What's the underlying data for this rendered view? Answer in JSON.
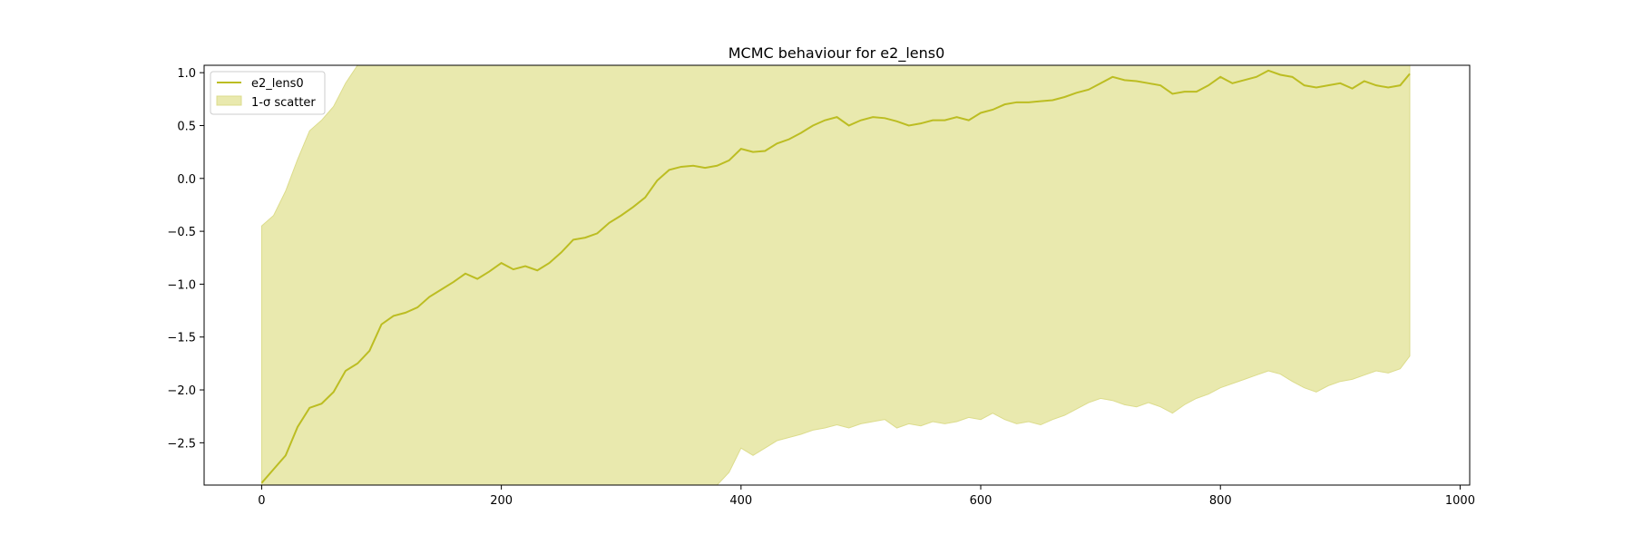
{
  "chart_data": {
    "type": "line",
    "title": "MCMC behaviour for e2_lens0",
    "xlabel": "",
    "ylabel": "",
    "xlim": [
      -48,
      1008
    ],
    "ylim": [
      -2.9,
      1.07
    ],
    "xticks": [
      0,
      200,
      400,
      600,
      800,
      1000
    ],
    "yticks": [
      1.0,
      0.5,
      0.0,
      -0.5,
      -1.0,
      -1.5,
      -2.0,
      -2.5
    ],
    "xtick_labels": [
      "0",
      "200",
      "400",
      "600",
      "800",
      "1000"
    ],
    "ytick_labels": [
      "1.0",
      "0.5",
      "0.0",
      "−0.5",
      "−1.0",
      "−1.5",
      "−2.0",
      "−2.5"
    ],
    "legend": {
      "position": "upper-left",
      "entries": [
        "e2_lens0",
        "1-σ scatter"
      ]
    },
    "grid": false,
    "colors": {
      "line": "#bcbd22",
      "band": "#e9e9ae",
      "band_edge": "#dcdc8c"
    },
    "series": [
      {
        "name": "e2_lens0",
        "x": [
          0,
          10,
          20,
          30,
          40,
          50,
          60,
          70,
          80,
          90,
          100,
          110,
          120,
          130,
          140,
          150,
          160,
          170,
          180,
          190,
          200,
          210,
          220,
          230,
          240,
          250,
          260,
          270,
          280,
          290,
          300,
          310,
          320,
          330,
          340,
          350,
          360,
          370,
          380,
          390,
          400,
          410,
          420,
          430,
          440,
          450,
          460,
          470,
          480,
          490,
          500,
          510,
          520,
          530,
          540,
          550,
          560,
          570,
          580,
          590,
          600,
          610,
          620,
          630,
          640,
          650,
          660,
          670,
          680,
          690,
          700,
          710,
          720,
          730,
          740,
          750,
          760,
          770,
          780,
          790,
          800,
          810,
          820,
          830,
          840,
          850,
          860,
          870,
          880,
          890,
          900,
          910,
          920,
          930,
          940,
          950,
          958
        ],
        "y": [
          -2.88,
          -2.75,
          -2.62,
          -2.35,
          -2.17,
          -2.13,
          -2.02,
          -1.82,
          -1.75,
          -1.63,
          -1.38,
          -1.3,
          -1.27,
          -1.22,
          -1.12,
          -1.05,
          -0.98,
          -0.9,
          -0.95,
          -0.88,
          -0.8,
          -0.86,
          -0.83,
          -0.87,
          -0.8,
          -0.7,
          -0.58,
          -0.56,
          -0.52,
          -0.42,
          -0.35,
          -0.27,
          -0.18,
          -0.02,
          0.08,
          0.11,
          0.12,
          0.1,
          0.12,
          0.17,
          0.28,
          0.25,
          0.26,
          0.33,
          0.37,
          0.43,
          0.5,
          0.55,
          0.58,
          0.5,
          0.55,
          0.58,
          0.57,
          0.54,
          0.5,
          0.52,
          0.55,
          0.55,
          0.58,
          0.55,
          0.62,
          0.65,
          0.7,
          0.72,
          0.72,
          0.73,
          0.74,
          0.77,
          0.81,
          0.84,
          0.9,
          0.96,
          0.93,
          0.92,
          0.9,
          0.88,
          0.8,
          0.82,
          0.82,
          0.88,
          0.96,
          0.9,
          0.93,
          0.96,
          1.02,
          0.98,
          0.96,
          0.88,
          0.86,
          0.88,
          0.9,
          0.85,
          0.92,
          0.88,
          0.86,
          0.88,
          0.99
        ]
      }
    ],
    "band": {
      "name": "1-σ scatter",
      "x": [
        0,
        10,
        20,
        30,
        40,
        50,
        60,
        70,
        80,
        90,
        100,
        110,
        120,
        130,
        140,
        150,
        160,
        170,
        180,
        190,
        200,
        210,
        220,
        230,
        240,
        250,
        260,
        270,
        280,
        290,
        300,
        310,
        320,
        330,
        340,
        350,
        360,
        370,
        380,
        390,
        400,
        410,
        420,
        430,
        440,
        450,
        460,
        470,
        480,
        490,
        500,
        510,
        520,
        530,
        540,
        550,
        560,
        570,
        580,
        590,
        600,
        610,
        620,
        630,
        640,
        650,
        660,
        670,
        680,
        690,
        700,
        710,
        720,
        730,
        740,
        750,
        760,
        770,
        780,
        790,
        800,
        810,
        820,
        830,
        840,
        850,
        860,
        870,
        880,
        890,
        900,
        910,
        920,
        930,
        940,
        950,
        958
      ],
      "upper": [
        -0.45,
        -0.35,
        -0.12,
        0.18,
        0.45,
        0.55,
        0.68,
        0.9,
        1.07,
        1.07,
        1.07,
        1.07,
        1.07,
        1.07,
        1.07,
        1.07,
        1.07,
        1.07,
        1.07,
        1.07,
        1.07,
        1.07,
        1.07,
        1.07,
        1.07,
        1.07,
        1.07,
        1.07,
        1.07,
        1.07,
        1.07,
        1.07,
        1.07,
        1.07,
        1.07,
        1.07,
        1.07,
        1.07,
        1.07,
        1.07,
        1.07,
        1.07,
        1.07,
        1.07,
        1.07,
        1.07,
        1.07,
        1.07,
        1.07,
        1.07,
        1.07,
        1.07,
        1.07,
        1.07,
        1.07,
        1.07,
        1.07,
        1.07,
        1.07,
        1.07,
        1.07,
        1.07,
        1.07,
        1.07,
        1.07,
        1.07,
        1.07,
        1.07,
        1.07,
        1.07,
        1.07,
        1.07,
        1.07,
        1.07,
        1.07,
        1.07,
        1.07,
        1.07,
        1.07,
        1.07,
        1.07,
        1.07,
        1.07,
        1.07,
        1.07,
        1.07,
        1.07,
        1.07,
        1.07,
        1.07,
        1.07,
        1.07,
        1.07,
        1.07,
        1.07,
        1.07,
        1.07
      ],
      "lower": [
        -2.9,
        -2.9,
        -2.9,
        -2.9,
        -2.9,
        -2.9,
        -2.9,
        -2.9,
        -2.9,
        -2.9,
        -2.9,
        -2.9,
        -2.9,
        -2.9,
        -2.9,
        -2.9,
        -2.9,
        -2.9,
        -2.9,
        -2.9,
        -2.9,
        -2.9,
        -2.9,
        -2.9,
        -2.9,
        -2.9,
        -2.9,
        -2.9,
        -2.9,
        -2.9,
        -2.9,
        -2.9,
        -2.9,
        -2.9,
        -2.9,
        -2.9,
        -2.9,
        -2.9,
        -2.9,
        -2.78,
        -2.55,
        -2.62,
        -2.55,
        -2.48,
        -2.45,
        -2.42,
        -2.38,
        -2.36,
        -2.33,
        -2.36,
        -2.32,
        -2.3,
        -2.28,
        -2.36,
        -2.32,
        -2.34,
        -2.3,
        -2.32,
        -2.3,
        -2.26,
        -2.28,
        -2.22,
        -2.28,
        -2.32,
        -2.3,
        -2.33,
        -2.28,
        -2.24,
        -2.18,
        -2.12,
        -2.08,
        -2.1,
        -2.14,
        -2.16,
        -2.12,
        -2.16,
        -2.22,
        -2.14,
        -2.08,
        -2.04,
        -1.98,
        -1.94,
        -1.9,
        -1.86,
        -1.82,
        -1.85,
        -1.92,
        -1.98,
        -2.02,
        -1.96,
        -1.92,
        -1.9,
        -1.86,
        -1.82,
        -1.84,
        -1.8,
        -1.68
      ]
    }
  }
}
